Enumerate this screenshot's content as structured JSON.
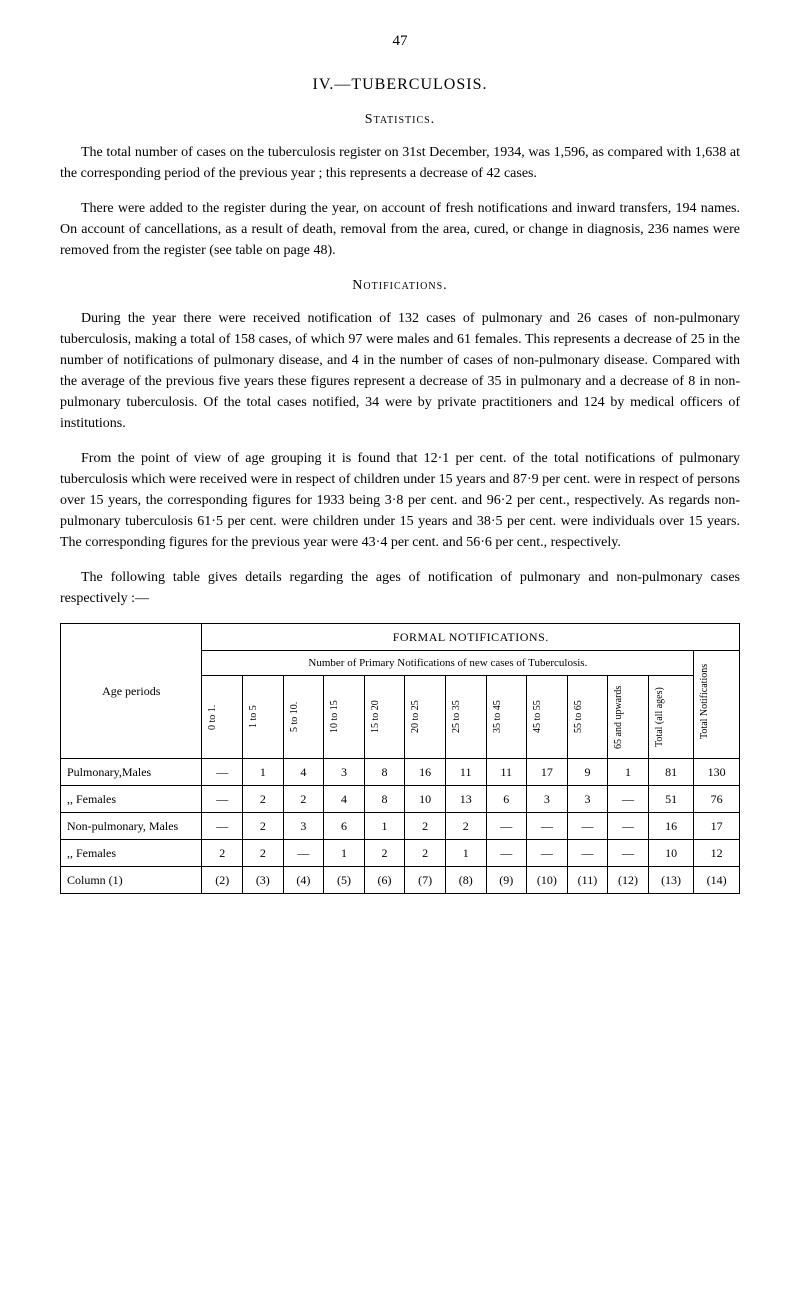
{
  "page_number": "47",
  "section_title": "IV.—TUBERCULOSIS.",
  "subsection_1": "Statistics.",
  "para_1": "The total number of cases on the tuberculosis register on 31st December, 1934, was 1,596, as compared with 1,638 at the corresponding period of the previous year ; this represents a decrease of 42 cases.",
  "para_2": "There were added to the register during the year, on account of fresh notifications and inward transfers, 194 names. On account of cancellations, as a result of death, removal from the area, cured, or change in diagnosis, 236 names were removed from the register (see table on page 48).",
  "subsection_2": "Notifications.",
  "para_3": "During the year there were received notification of 132 cases of pulmonary and 26 cases of non-pulmonary tuberculosis, making a total of 158 cases, of which 97 were males and 61 females. This represents a decrease of 25 in the number of notifications of pulmonary disease, and 4 in the number of cases of non-pulmonary disease. Compared with the average of the previous five years these figures represent a decrease of 35 in pulmonary and a decrease of 8 in non-pulmonary tuberculosis. Of the total cases notified, 34 were by private practitioners and 124 by medical officers of institutions.",
  "para_4": "From the point of view of age grouping it is found that 12·1 per cent. of the total notifications of pulmonary tuberculosis which were received were in respect of children under 15 years and 87·9 per cent. were in respect of persons over 15 years, the corresponding figures for 1933 being 3·8 per cent. and 96·2 per cent., respectively. As regards non-pulmonary tuberculosis 61·5 per cent. were children under 15 years and 38·5 per cent. were individuals over 15 years.  The corresponding figures for the previous year were 43·4 per cent. and 56·6 per cent., respectively.",
  "para_5": "The following table gives details regarding the ages of notification of pulmonary and non-pulmonary cases respectively :—",
  "table": {
    "formal_header": "FORMAL NOTIFICATIONS.",
    "number_header": "Number of Primary Notifications of new cases of Tuberculosis.",
    "age_periods_label": "Age periods",
    "age_cols": [
      "0 to 1.",
      "1 to 5",
      "5 to 10.",
      "10 to 15",
      "15 to 20",
      "20 to 25",
      "25 to 35",
      "35 to 45",
      "45 to 55",
      "55 to 65",
      "65 and upwards",
      "Total (all ages)"
    ],
    "total_notif_col": "Total Notifications",
    "rows": [
      {
        "label": "Pulmonary,Males",
        "cells": [
          "—",
          "1",
          "4",
          "3",
          "8",
          "16",
          "11",
          "11",
          "17",
          "9",
          "1",
          "81",
          "130"
        ]
      },
      {
        "label": ",,        Females",
        "cells": [
          "—",
          "2",
          "2",
          "4",
          "8",
          "10",
          "13",
          "6",
          "3",
          "3",
          "—",
          "51",
          "76"
        ]
      },
      {
        "label": "Non-pulmonary, Males",
        "cells": [
          "—",
          "2",
          "3",
          "6",
          "1",
          "2",
          "2",
          "—",
          "—",
          "—",
          "—",
          "16",
          "17"
        ]
      },
      {
        "label": ",,        Females",
        "cells": [
          "2",
          "2",
          "—",
          "1",
          "2",
          "2",
          "1",
          "—",
          "—",
          "—",
          "—",
          "10",
          "12"
        ]
      },
      {
        "label": "Column (1)",
        "cells": [
          "(2)",
          "(3)",
          "(4)",
          "(5)",
          "(6)",
          "(7)",
          "(8)",
          "(9)",
          "(10)",
          "(11)",
          "(12)",
          "(13)",
          "(14)"
        ]
      }
    ]
  }
}
